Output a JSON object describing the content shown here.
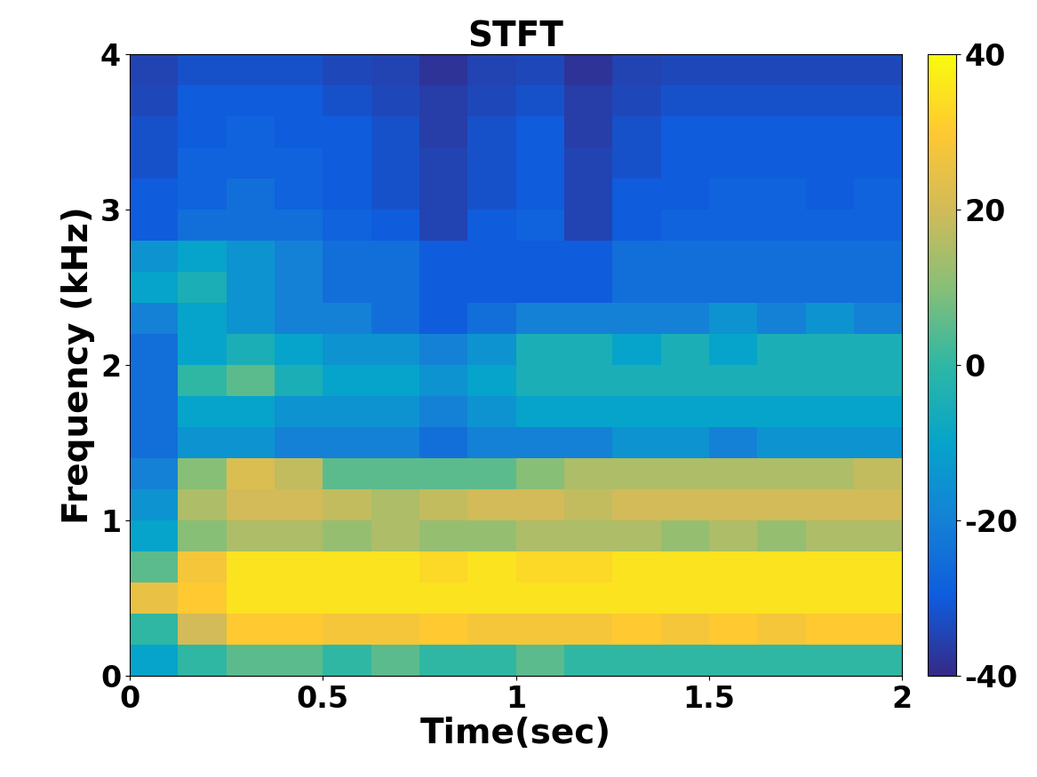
{
  "chart_data": {
    "type": "heatmap",
    "title": "STFT",
    "x_label": "Time(sec)",
    "y_label": "Frequency (kHz)",
    "x": [
      0,
      0.125,
      0.25,
      0.375,
      0.5,
      0.625,
      0.75,
      0.875,
      1,
      1.125,
      1.25,
      1.375,
      1.5,
      1.625,
      1.75,
      1.875,
      2
    ],
    "y": [
      0,
      0.2,
      0.4,
      0.6,
      0.8,
      1,
      1.2,
      1.4,
      1.6,
      1.8,
      2,
      2.2,
      2.4,
      2.6,
      2.8,
      3,
      3.2,
      3.4,
      3.6,
      3.8,
      4
    ],
    "cells": [
      [
        -10,
        0,
        5,
        5,
        0,
        5,
        0,
        0,
        5,
        0,
        0,
        0,
        0,
        0,
        0,
        0
      ],
      [
        0,
        20,
        30,
        30,
        28,
        28,
        30,
        28,
        28,
        28,
        30,
        28,
        30,
        28,
        30,
        30
      ],
      [
        25,
        30,
        35,
        35,
        35,
        35,
        35,
        35,
        35,
        35,
        35,
        35,
        35,
        35,
        35,
        35
      ],
      [
        5,
        28,
        35,
        35,
        35,
        35,
        33,
        35,
        33,
        33,
        35,
        35,
        35,
        35,
        35,
        35
      ],
      [
        -10,
        10,
        15,
        15,
        12,
        15,
        12,
        12,
        15,
        15,
        15,
        12,
        15,
        12,
        15,
        15
      ],
      [
        -15,
        15,
        20,
        20,
        18,
        15,
        18,
        20,
        20,
        18,
        20,
        20,
        20,
        20,
        20,
        20
      ],
      [
        -20,
        10,
        22,
        18,
        5,
        5,
        5,
        5,
        10,
        15,
        15,
        15,
        15,
        15,
        15,
        18
      ],
      [
        -25,
        -15,
        -15,
        -20,
        -20,
        -20,
        -25,
        -20,
        -20,
        -20,
        -15,
        -15,
        -20,
        -15,
        -15,
        -15
      ],
      [
        -25,
        -10,
        -10,
        -15,
        -15,
        -15,
        -20,
        -15,
        -10,
        -10,
        -10,
        -10,
        -10,
        -10,
        -10,
        -10
      ],
      [
        -25,
        0,
        5,
        -5,
        -10,
        -10,
        -15,
        -10,
        -5,
        -5,
        -5,
        -5,
        -5,
        -5,
        -5,
        -5
      ],
      [
        -25,
        -10,
        -5,
        -10,
        -15,
        -15,
        -20,
        -15,
        -5,
        -5,
        -10,
        -5,
        -10,
        -5,
        -5,
        -5
      ],
      [
        -20,
        -10,
        -15,
        -20,
        -20,
        -25,
        -30,
        -25,
        -20,
        -20,
        -20,
        -20,
        -15,
        -20,
        -15,
        -20
      ],
      [
        -10,
        -5,
        -15,
        -20,
        -25,
        -25,
        -30,
        -30,
        -30,
        -30,
        -25,
        -25,
        -25,
        -25,
        -25,
        -25
      ],
      [
        -15,
        -10,
        -15,
        -20,
        -25,
        -25,
        -30,
        -30,
        -30,
        -30,
        -25,
        -25,
        -25,
        -25,
        -25,
        -25
      ],
      [
        -30,
        -25,
        -25,
        -25,
        -28,
        -30,
        -35,
        -30,
        -28,
        -35,
        -30,
        -28,
        -28,
        -28,
        -28,
        -28
      ],
      [
        -30,
        -28,
        -25,
        -28,
        -30,
        -32,
        -35,
        -32,
        -30,
        -35,
        -30,
        -30,
        -28,
        -28,
        -30,
        -28
      ],
      [
        -32,
        -28,
        -28,
        -28,
        -30,
        -32,
        -35,
        -32,
        -30,
        -35,
        -32,
        -30,
        -30,
        -30,
        -30,
        -30
      ],
      [
        -32,
        -30,
        -28,
        -30,
        -30,
        -32,
        -36,
        -32,
        -30,
        -36,
        -32,
        -30,
        -30,
        -30,
        -30,
        -30
      ],
      [
        -34,
        -30,
        -30,
        -30,
        -32,
        -34,
        -36,
        -34,
        -32,
        -36,
        -34,
        -32,
        -32,
        -32,
        -32,
        -32
      ],
      [
        -35,
        -32,
        -32,
        -32,
        -34,
        -35,
        -38,
        -35,
        -34,
        -38,
        -35,
        -34,
        -34,
        -34,
        -34,
        -34
      ]
    ],
    "xlim": [
      0,
      2
    ],
    "xticks": [
      0,
      0.5,
      1,
      1.5,
      2
    ],
    "ylim": [
      0,
      4
    ],
    "yticks": [
      0,
      1,
      2,
      3,
      4
    ],
    "colorbar_range": [
      -40,
      40
    ],
    "colorbar_ticks": [
      -40,
      -20,
      0,
      20,
      40
    ]
  }
}
